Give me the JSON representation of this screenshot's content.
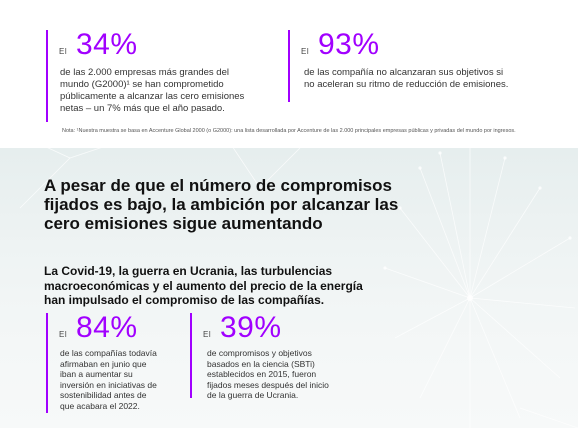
{
  "stats_top": [
    {
      "prefix": "El",
      "value": "34%",
      "description": "de las 2.000 empresas más grandes del mundo (G2000)¹ se han comprometido públicamente a alcanzar las cero emisiones netas – un 7% más que el año pasado."
    },
    {
      "prefix": "El",
      "value": "93%",
      "description": "de las compañía no alcanzaran sus objetivos si no aceleran su ritmo de reducción de emisiones."
    }
  ],
  "note": "Nota: ¹Nuestra muestra se basa en Accenture Global 2000 (o G2000): una lista desarrollada por Accenture de las 2.000 principales empresas públicas y privadas del mundo por ingresos.",
  "headline": "A pesar de que el número de compromisos fijados es bajo, la ambición por alcanzar las cero emisiones sigue aumentando",
  "subheadline": "La Covid-19, la guerra en Ucrania, las turbulencias macroeconómicas y el aumento del precio de la energía han impulsado el compromiso de las compañías.",
  "stats_bottom": [
    {
      "prefix": "El",
      "value": "84%",
      "description": "de las compañías todavía afirmaban en junio que iban a aumentar su inversión en iniciativas de sostenibilidad antes de que acabara el 2022."
    },
    {
      "prefix": "El",
      "value": "39%",
      "description": "de compromisos y objetivos basados en la ciencia (SBTi) establecidos en 2015, fueron fijados meses después del inicio de la guerra de Ucrania."
    }
  ],
  "colors": {
    "accent": "#a100ff",
    "background_lower": "#e6eeee"
  }
}
